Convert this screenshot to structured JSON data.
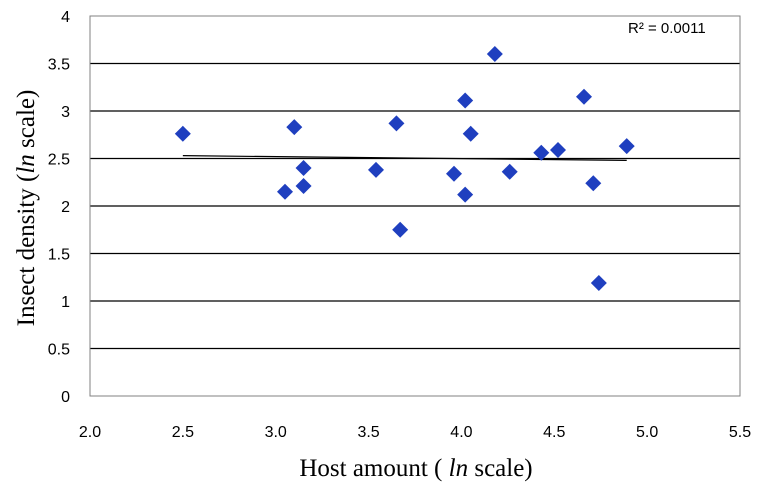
{
  "chart_data": {
    "type": "scatter",
    "xlabel_parts": [
      "Host amount ( ",
      "ln",
      " scale)"
    ],
    "ylabel_parts": [
      "Insect density (",
      "ln",
      " scale)"
    ],
    "x_ticks": [
      "2.0",
      "2.5",
      "3.0",
      "3.5",
      "4.0",
      "4.5",
      "5.0",
      "5.5"
    ],
    "y_ticks": [
      "0",
      "0.5",
      "1",
      "1.5",
      "2",
      "2.5",
      "3",
      "3.5",
      "4"
    ],
    "xlim": [
      2.0,
      5.5
    ],
    "ylim": [
      0,
      4
    ],
    "grid": "horizontal",
    "marker_color": "#1f3fbf",
    "series": [
      {
        "points": [
          {
            "x": 2.5,
            "y": 2.76
          },
          {
            "x": 3.05,
            "y": 2.15
          },
          {
            "x": 3.1,
            "y": 2.83
          },
          {
            "x": 3.15,
            "y": 2.4
          },
          {
            "x": 3.15,
            "y": 2.21
          },
          {
            "x": 3.54,
            "y": 2.38
          },
          {
            "x": 3.65,
            "y": 2.87
          },
          {
            "x": 3.67,
            "y": 1.75
          },
          {
            "x": 3.96,
            "y": 2.34
          },
          {
            "x": 4.02,
            "y": 3.11
          },
          {
            "x": 4.02,
            "y": 2.12
          },
          {
            "x": 4.05,
            "y": 2.76
          },
          {
            "x": 4.18,
            "y": 3.6
          },
          {
            "x": 4.26,
            "y": 2.36
          },
          {
            "x": 4.43,
            "y": 2.56
          },
          {
            "x": 4.52,
            "y": 2.59
          },
          {
            "x": 4.66,
            "y": 3.15
          },
          {
            "x": 4.71,
            "y": 2.24
          },
          {
            "x": 4.74,
            "y": 1.19
          },
          {
            "x": 4.89,
            "y": 2.63
          }
        ]
      }
    ],
    "trendline": {
      "x": [
        2.5,
        4.89
      ],
      "y": [
        2.53,
        2.48
      ]
    },
    "r2_text": "R² = 0.0011"
  }
}
